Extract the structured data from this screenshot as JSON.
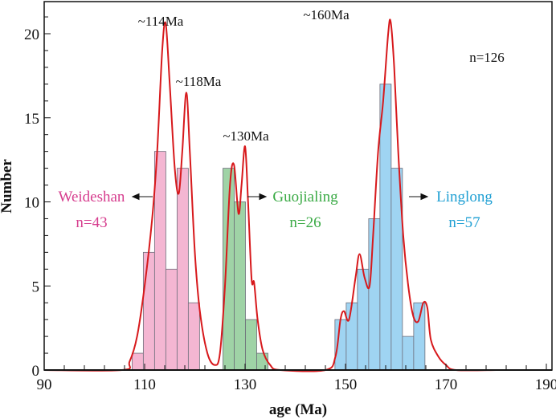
{
  "chart_data": {
    "type": "bar",
    "xlabel": "age (Ma)",
    "ylabel": "Number",
    "xlim": [
      90,
      190
    ],
    "ylim": [
      0,
      21.5
    ],
    "xticks": [
      90,
      110,
      130,
      150,
      170,
      190
    ],
    "yticks": [
      0,
      5,
      10,
      15,
      20
    ],
    "grid": false,
    "total_label": "n=126",
    "series": [
      {
        "name": "Weideshan",
        "count_label": "n=43",
        "color": "#f4b6d2",
        "text_color": "#d63d8e",
        "bin_start": 107.5,
        "bin_width": 2.24,
        "values": [
          1,
          7,
          13,
          6,
          12,
          4
        ]
      },
      {
        "name": "Guojialing",
        "count_label": "n=26",
        "color": "#9fd3a6",
        "text_color": "#3aaa45",
        "bin_start": 125.6,
        "bin_width": 2.24,
        "values": [
          12,
          10,
          3,
          1
        ]
      },
      {
        "name": "Linglong",
        "count_label": "n=57",
        "color": "#9fd4f2",
        "text_color": "#1e9fd3",
        "bin_start": 147.9,
        "bin_width": 2.24,
        "values": [
          3,
          4,
          6,
          9,
          17,
          12,
          2,
          4
        ]
      }
    ],
    "density_curve": {
      "color": "#d7191c",
      "points": [
        [
          90,
          0
        ],
        [
          105.5,
          0
        ],
        [
          107,
          0.5
        ],
        [
          108.5,
          2
        ],
        [
          110,
          5
        ],
        [
          111.5,
          9
        ],
        [
          112.5,
          13
        ],
        [
          113.5,
          19
        ],
        [
          114.2,
          20.6
        ],
        [
          115,
          17
        ],
        [
          116,
          12
        ],
        [
          116.8,
          10.5
        ],
        [
          117.5,
          13
        ],
        [
          118.3,
          16.5
        ],
        [
          119,
          13
        ],
        [
          120,
          7
        ],
        [
          121,
          3.5
        ],
        [
          122.5,
          1
        ],
        [
          124,
          0.3
        ],
        [
          125,
          1
        ],
        [
          126,
          5
        ],
        [
          127,
          11
        ],
        [
          127.8,
          12.2
        ],
        [
          128.7,
          9.3
        ],
        [
          129.3,
          11
        ],
        [
          130,
          13.3
        ],
        [
          130.6,
          10
        ],
        [
          131.3,
          5.4
        ],
        [
          131.8,
          5.2
        ],
        [
          132.5,
          3
        ],
        [
          133.5,
          1.2
        ],
        [
          135,
          0.3
        ],
        [
          137,
          0
        ],
        [
          146,
          0
        ],
        [
          148,
          0.8
        ],
        [
          149,
          3
        ],
        [
          149.7,
          3.5
        ],
        [
          150.7,
          3
        ],
        [
          152,
          5.5
        ],
        [
          152.8,
          6.9
        ],
        [
          153.8,
          5.5
        ],
        [
          154.8,
          5
        ],
        [
          155.5,
          8
        ],
        [
          156.5,
          13
        ],
        [
          157.5,
          16
        ],
        [
          158.5,
          20
        ],
        [
          159,
          20.7
        ],
        [
          159.7,
          18
        ],
        [
          160.5,
          13
        ],
        [
          161.5,
          8
        ],
        [
          162.5,
          5
        ],
        [
          163.5,
          3.2
        ],
        [
          164.5,
          2.9
        ],
        [
          165.5,
          4
        ],
        [
          166.3,
          3.7
        ],
        [
          167,
          1.8
        ],
        [
          168.5,
          0.8
        ],
        [
          170,
          0.3
        ],
        [
          172,
          0
        ],
        [
          180,
          0
        ]
      ]
    },
    "annotations": [
      "~114Ma",
      "~118Ma",
      "~130Ma",
      "~160Ma"
    ]
  }
}
